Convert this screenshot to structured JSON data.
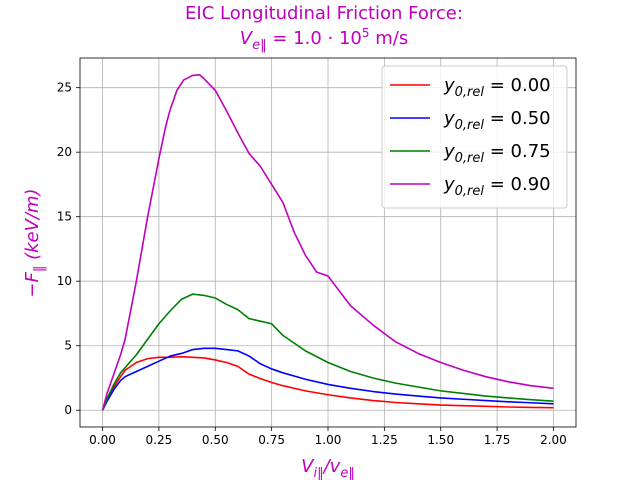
{
  "chart_data": {
    "type": "line",
    "title_line1": "EIC Longitudinal Friction Force:",
    "title_line2": "V_e‖ = 1.0 · 10^5 m/s",
    "xlabel": "V_i‖ / v_e‖",
    "ylabel": "−F_‖ (keV/m)",
    "accent_color": "#bf00bf",
    "xlim": [
      -0.1,
      2.1
    ],
    "ylim": [
      -1.3,
      27.3
    ],
    "grid": true,
    "legend_position": "top-right",
    "x_ticks": [
      0.0,
      0.25,
      0.5,
      0.75,
      1.0,
      1.25,
      1.5,
      1.75,
      2.0
    ],
    "x_tick_labels": [
      "0.00",
      "0.25",
      "0.50",
      "0.75",
      "1.00",
      "1.25",
      "1.50",
      "1.75",
      "2.00"
    ],
    "y_ticks": [
      0,
      5,
      10,
      15,
      20,
      25
    ],
    "y_tick_labels": [
      "0",
      "5",
      "10",
      "15",
      "20",
      "25"
    ],
    "series": [
      {
        "name": "y_0,rel = 0.00",
        "legend_value": "0.00",
        "color": "#ff0000",
        "points": [
          [
            0.0,
            0.0
          ],
          [
            0.02,
            0.8
          ],
          [
            0.05,
            1.8
          ],
          [
            0.08,
            2.6
          ],
          [
            0.1,
            3.1
          ],
          [
            0.15,
            3.7
          ],
          [
            0.2,
            4.0
          ],
          [
            0.25,
            4.1
          ],
          [
            0.3,
            4.1
          ],
          [
            0.35,
            4.15
          ],
          [
            0.4,
            4.1
          ],
          [
            0.45,
            4.05
          ],
          [
            0.5,
            3.9
          ],
          [
            0.55,
            3.7
          ],
          [
            0.6,
            3.4
          ],
          [
            0.65,
            2.8
          ],
          [
            0.7,
            2.45
          ],
          [
            0.75,
            2.15
          ],
          [
            0.8,
            1.9
          ],
          [
            0.9,
            1.5
          ],
          [
            1.0,
            1.2
          ],
          [
            1.1,
            0.95
          ],
          [
            1.2,
            0.75
          ],
          [
            1.3,
            0.6
          ],
          [
            1.4,
            0.5
          ],
          [
            1.5,
            0.4
          ],
          [
            1.6,
            0.35
          ],
          [
            1.7,
            0.3
          ],
          [
            1.8,
            0.25
          ],
          [
            1.9,
            0.22
          ],
          [
            2.0,
            0.2
          ]
        ]
      },
      {
        "name": "y_0,rel = 0.50",
        "legend_value": "0.50",
        "color": "#0000ff",
        "points": [
          [
            0.0,
            0.0
          ],
          [
            0.02,
            0.7
          ],
          [
            0.05,
            1.6
          ],
          [
            0.08,
            2.3
          ],
          [
            0.1,
            2.6
          ],
          [
            0.15,
            3.0
          ],
          [
            0.2,
            3.4
          ],
          [
            0.25,
            3.8
          ],
          [
            0.3,
            4.2
          ],
          [
            0.35,
            4.4
          ],
          [
            0.4,
            4.7
          ],
          [
            0.45,
            4.8
          ],
          [
            0.5,
            4.8
          ],
          [
            0.55,
            4.7
          ],
          [
            0.6,
            4.6
          ],
          [
            0.65,
            4.2
          ],
          [
            0.7,
            3.6
          ],
          [
            0.75,
            3.2
          ],
          [
            0.8,
            2.9
          ],
          [
            0.9,
            2.4
          ],
          [
            1.0,
            2.0
          ],
          [
            1.1,
            1.7
          ],
          [
            1.2,
            1.45
          ],
          [
            1.3,
            1.25
          ],
          [
            1.4,
            1.1
          ],
          [
            1.5,
            0.95
          ],
          [
            1.6,
            0.85
          ],
          [
            1.7,
            0.75
          ],
          [
            1.8,
            0.65
          ],
          [
            1.9,
            0.58
          ],
          [
            2.0,
            0.5
          ]
        ]
      },
      {
        "name": "y_0,rel = 0.75",
        "legend_value": "0.75",
        "color": "#008000",
        "points": [
          [
            0.0,
            0.0
          ],
          [
            0.02,
            0.9
          ],
          [
            0.05,
            2.0
          ],
          [
            0.08,
            2.9
          ],
          [
            0.1,
            3.3
          ],
          [
            0.15,
            4.3
          ],
          [
            0.2,
            5.5
          ],
          [
            0.25,
            6.7
          ],
          [
            0.3,
            7.7
          ],
          [
            0.35,
            8.6
          ],
          [
            0.4,
            9.0
          ],
          [
            0.45,
            8.9
          ],
          [
            0.5,
            8.7
          ],
          [
            0.55,
            8.2
          ],
          [
            0.6,
            7.8
          ],
          [
            0.65,
            7.1
          ],
          [
            0.7,
            6.9
          ],
          [
            0.75,
            6.7
          ],
          [
            0.8,
            5.8
          ],
          [
            0.9,
            4.6
          ],
          [
            1.0,
            3.7
          ],
          [
            1.1,
            3.0
          ],
          [
            1.2,
            2.5
          ],
          [
            1.3,
            2.1
          ],
          [
            1.4,
            1.8
          ],
          [
            1.5,
            1.5
          ],
          [
            1.6,
            1.3
          ],
          [
            1.7,
            1.1
          ],
          [
            1.8,
            0.95
          ],
          [
            1.9,
            0.82
          ],
          [
            2.0,
            0.7
          ]
        ]
      },
      {
        "name": "y_0,rel = 0.90",
        "legend_value": "0.90",
        "color": "#bf00bf",
        "points": [
          [
            0.0,
            0.0
          ],
          [
            0.02,
            1.3
          ],
          [
            0.05,
            2.8
          ],
          [
            0.08,
            4.3
          ],
          [
            0.1,
            5.5
          ],
          [
            0.12,
            7.3
          ],
          [
            0.15,
            10.0
          ],
          [
            0.2,
            15.0
          ],
          [
            0.25,
            19.5
          ],
          [
            0.28,
            22.0
          ],
          [
            0.3,
            23.3
          ],
          [
            0.33,
            24.8
          ],
          [
            0.36,
            25.6
          ],
          [
            0.4,
            25.95
          ],
          [
            0.43,
            26.0
          ],
          [
            0.45,
            25.7
          ],
          [
            0.5,
            24.8
          ],
          [
            0.55,
            23.2
          ],
          [
            0.6,
            21.5
          ],
          [
            0.65,
            19.9
          ],
          [
            0.7,
            18.9
          ],
          [
            0.75,
            17.5
          ],
          [
            0.8,
            16.1
          ],
          [
            0.85,
            13.8
          ],
          [
            0.9,
            12.0
          ],
          [
            0.95,
            10.7
          ],
          [
            1.0,
            10.4
          ],
          [
            1.1,
            8.1
          ],
          [
            1.2,
            6.6
          ],
          [
            1.3,
            5.3
          ],
          [
            1.4,
            4.4
          ],
          [
            1.5,
            3.7
          ],
          [
            1.6,
            3.1
          ],
          [
            1.7,
            2.6
          ],
          [
            1.8,
            2.2
          ],
          [
            1.9,
            1.9
          ],
          [
            2.0,
            1.7
          ]
        ]
      }
    ]
  }
}
